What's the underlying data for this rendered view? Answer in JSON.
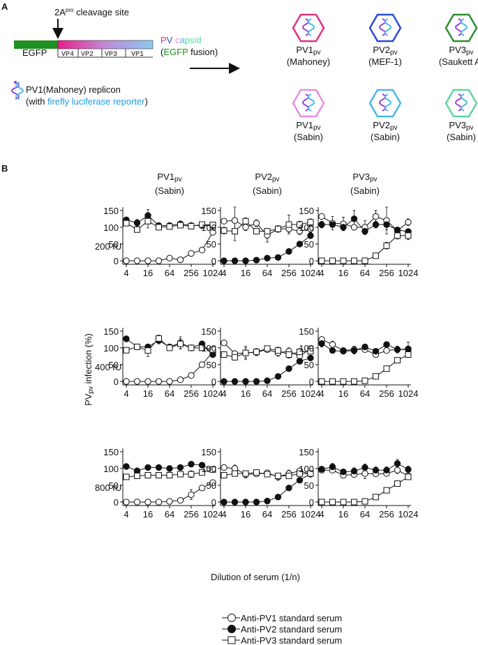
{
  "panel_a": {
    "label": "A",
    "cleavage": {
      "main": "2A",
      "sup": "pro",
      "rest": " cleavage site"
    },
    "segments": [
      "EGFP",
      "VP4",
      "VP2",
      "VP3",
      "VP1"
    ],
    "capsid_text": [
      {
        "text": "P",
        "color": "#e0307f"
      },
      {
        "text": "V",
        "color": "#2a4bd6"
      },
      {
        "text": " c",
        "color": "#e88ee0"
      },
      {
        "text": "a",
        "color": "#4ab8e8"
      },
      {
        "text": "psid",
        "color": "#5ed69e"
      }
    ],
    "fusion_text": [
      {
        "text": "(",
        "color": "#111111"
      },
      {
        "text": "EGFP",
        "color": "#1f8f1f"
      },
      {
        "text": " fusion)",
        "color": "#111111"
      }
    ],
    "replicon_line1": {
      "text": "PV1(Mahoney) replicon",
      "color": "#9b3fd6"
    },
    "replicon_line2": [
      {
        "text": "(with ",
        "color": "#111111"
      },
      {
        "text": "firefly luciferase reporter",
        "color": "#1e9be0"
      },
      {
        "text": ")",
        "color": "#111111"
      }
    ],
    "viruses": [
      {
        "name": "PV1",
        "sub": "pv",
        "strain": "(Mahoney)",
        "color": "#e0307f"
      },
      {
        "name": "PV2",
        "sub": "pv",
        "strain": "(MEF-1)",
        "color": "#2a4bd6"
      },
      {
        "name": "PV3",
        "sub": "pv",
        "strain": "(Saukett A)",
        "color": "#2f8f2f"
      },
      {
        "name": "PV1",
        "sub": "pv",
        "strain": "(Sabin)",
        "color": "#e88ee0"
      },
      {
        "name": "PV2",
        "sub": "pv",
        "strain": "(Sabin)",
        "color": "#4ab8e8"
      },
      {
        "name": "PV3",
        "sub": "pv",
        "strain": "(Sabin)",
        "color": "#5ed69e"
      }
    ]
  },
  "panel_b": {
    "label": "B",
    "column_titles": [
      {
        "name": "PV1",
        "sub": "pv",
        "strain": "(Sabin)"
      },
      {
        "name": "PV2",
        "sub": "pv",
        "strain": "(Sabin)"
      },
      {
        "name": "PV3",
        "sub": "pv",
        "strain": "(Sabin)"
      }
    ],
    "row_labels": [
      "200 IU",
      "400 IU",
      "800 IU"
    ],
    "y_label": {
      "main": "PV",
      "sub": "pv",
      "rest": " infection (%)"
    },
    "x_label": "Dilution of serum (1/n)",
    "legend": [
      {
        "name": "Anti-PV1 standard serum",
        "marker": "circle",
        "filled": false
      },
      {
        "name": "Anti-PV2 standard serum",
        "marker": "circle",
        "filled": true
      },
      {
        "name": "Anti-PV3 standard serum",
        "marker": "square",
        "filled": false
      }
    ],
    "axes": {
      "x": [
        4,
        8,
        16,
        32,
        64,
        128,
        256,
        512,
        1024
      ],
      "xlim": [
        4,
        1024
      ],
      "xticks": [
        4,
        16,
        64,
        256,
        1024
      ],
      "xscale": "log2",
      "ylim": [
        0,
        160
      ],
      "yticks": [
        0,
        50,
        100,
        150
      ]
    }
  },
  "chart_data": [
    {
      "type": "line",
      "series": [
        {
          "values": [
            0,
            0,
            0,
            0,
            8,
            3,
            22,
            32,
            85
          ],
          "errors": [
            0,
            0,
            0,
            0,
            6,
            2,
            6,
            5,
            3
          ]
        },
        {
          "values": [
            122,
            113,
            135,
            105,
            105,
            110,
            105,
            105,
            105
          ],
          "errors": [
            8,
            10,
            18,
            5,
            5,
            8,
            5,
            5,
            5
          ]
        },
        {
          "values": [
            112,
            93,
            118,
            100,
            102,
            106,
            103,
            108,
            107
          ],
          "errors": [
            8,
            4,
            20,
            5,
            5,
            6,
            5,
            5,
            5
          ]
        }
      ]
    },
    {
      "type": "line",
      "series": [
        {
          "values": [
            118,
            120,
            100,
            112,
            76,
            95,
            95,
            88,
            95
          ],
          "errors": [
            5,
            40,
            10,
            10,
            20,
            10,
            10,
            10,
            10
          ]
        },
        {
          "values": [
            0,
            0,
            0,
            2,
            8,
            10,
            28,
            50,
            75
          ],
          "errors": [
            0,
            0,
            0,
            0,
            0,
            0,
            5,
            5,
            8
          ]
        },
        {
          "values": [
            90,
            88,
            118,
            88,
            88,
            95,
            108,
            108,
            115
          ],
          "errors": [
            10,
            28,
            10,
            5,
            5,
            5,
            28,
            10,
            10
          ]
        }
      ]
    },
    {
      "type": "line",
      "series": [
        {
          "values": [
            132,
            112,
            110,
            100,
            100,
            132,
            120,
            90,
            115
          ],
          "errors": [
            5,
            20,
            20,
            5,
            20,
            18,
            40,
            8,
            10
          ]
        },
        {
          "values": [
            108,
            108,
            100,
            125,
            88,
            108,
            108,
            92,
            87
          ],
          "errors": [
            10,
            8,
            10,
            25,
            10,
            10,
            15,
            8,
            8
          ]
        },
        {
          "values": [
            0,
            0,
            0,
            0,
            0,
            15,
            45,
            75,
            75
          ],
          "errors": [
            0,
            0,
            0,
            0,
            0,
            5,
            10,
            10,
            12
          ]
        }
      ]
    },
    {
      "type": "line",
      "series": [
        {
          "values": [
            0,
            0,
            0,
            0,
            0,
            5,
            18,
            50,
            88
          ],
          "errors": [
            0,
            0,
            0,
            0,
            0,
            2,
            3,
            5,
            5
          ]
        },
        {
          "values": [
            127,
            103,
            103,
            122,
            103,
            115,
            100,
            112,
            80
          ],
          "errors": [
            8,
            5,
            8,
            10,
            5,
            18,
            8,
            5,
            8
          ]
        },
        {
          "values": [
            93,
            103,
            92,
            128,
            100,
            112,
            100,
            100,
            95
          ],
          "errors": [
            8,
            5,
            18,
            10,
            5,
            15,
            8,
            5,
            5
          ]
        }
      ]
    },
    {
      "type": "line",
      "series": [
        {
          "values": [
            115,
            83,
            85,
            87,
            95,
            85,
            90,
            75,
            98
          ],
          "errors": [
            5,
            8,
            20,
            10,
            5,
            10,
            10,
            10,
            5
          ]
        },
        {
          "values": [
            0,
            0,
            0,
            0,
            2,
            15,
            38,
            60,
            70
          ],
          "errors": [
            0,
            0,
            0,
            0,
            0,
            3,
            3,
            5,
            8
          ]
        },
        {
          "values": [
            80,
            72,
            85,
            88,
            98,
            92,
            80,
            88,
            90
          ],
          "errors": [
            5,
            8,
            15,
            10,
            5,
            10,
            10,
            10,
            5
          ]
        }
      ]
    },
    {
      "type": "line",
      "series": [
        {
          "values": [
            125,
            110,
            92,
            95,
            95,
            80,
            92,
            95,
            95
          ],
          "errors": [
            5,
            10,
            5,
            10,
            5,
            5,
            5,
            10,
            5
          ]
        },
        {
          "values": [
            113,
            92,
            90,
            92,
            103,
            90,
            110,
            95,
            97
          ],
          "errors": [
            10,
            5,
            5,
            10,
            5,
            5,
            8,
            10,
            20
          ]
        },
        {
          "values": [
            0,
            0,
            0,
            0,
            2,
            15,
            38,
            63,
            80
          ],
          "errors": [
            0,
            0,
            0,
            0,
            0,
            3,
            3,
            8,
            8
          ]
        }
      ]
    },
    {
      "type": "line",
      "series": [
        {
          "values": [
            0,
            0,
            0,
            0,
            2,
            5,
            22,
            42,
            58
          ],
          "errors": [
            0,
            0,
            0,
            0,
            0,
            0,
            15,
            5,
            3
          ]
        },
        {
          "values": [
            106,
            93,
            103,
            103,
            100,
            103,
            113,
            110,
            97
          ],
          "errors": [
            5,
            5,
            5,
            5,
            5,
            5,
            8,
            5,
            5
          ]
        },
        {
          "values": [
            75,
            78,
            80,
            80,
            80,
            83,
            83,
            88,
            97
          ],
          "errors": [
            3,
            3,
            3,
            3,
            3,
            3,
            10,
            5,
            5
          ]
        }
      ]
    },
    {
      "type": "line",
      "series": [
        {
          "values": [
            103,
            100,
            82,
            84,
            87,
            75,
            85,
            93,
            83
          ],
          "errors": [
            5,
            10,
            10,
            5,
            5,
            10,
            10,
            8,
            5
          ]
        },
        {
          "values": [
            0,
            0,
            0,
            0,
            3,
            15,
            42,
            65,
            85
          ],
          "errors": [
            0,
            0,
            0,
            0,
            0,
            3,
            3,
            5,
            5
          ]
        },
        {
          "values": [
            80,
            85,
            85,
            88,
            83,
            78,
            78,
            85,
            85
          ],
          "errors": [
            5,
            8,
            5,
            5,
            5,
            8,
            8,
            5,
            5
          ]
        }
      ]
    },
    {
      "type": "line",
      "series": [
        {
          "values": [
            95,
            95,
            80,
            82,
            85,
            84,
            85,
            95,
            78
          ],
          "errors": [
            5,
            8,
            5,
            5,
            15,
            8,
            8,
            10,
            5
          ]
        },
        {
          "values": [
            98,
            105,
            90,
            92,
            103,
            95,
            95,
            115,
            97
          ],
          "errors": [
            8,
            10,
            5,
            10,
            10,
            10,
            10,
            12,
            10
          ]
        },
        {
          "values": [
            0,
            0,
            0,
            0,
            2,
            15,
            35,
            55,
            75
          ],
          "errors": [
            0,
            0,
            0,
            0,
            0,
            3,
            3,
            5,
            5
          ]
        }
      ]
    }
  ]
}
